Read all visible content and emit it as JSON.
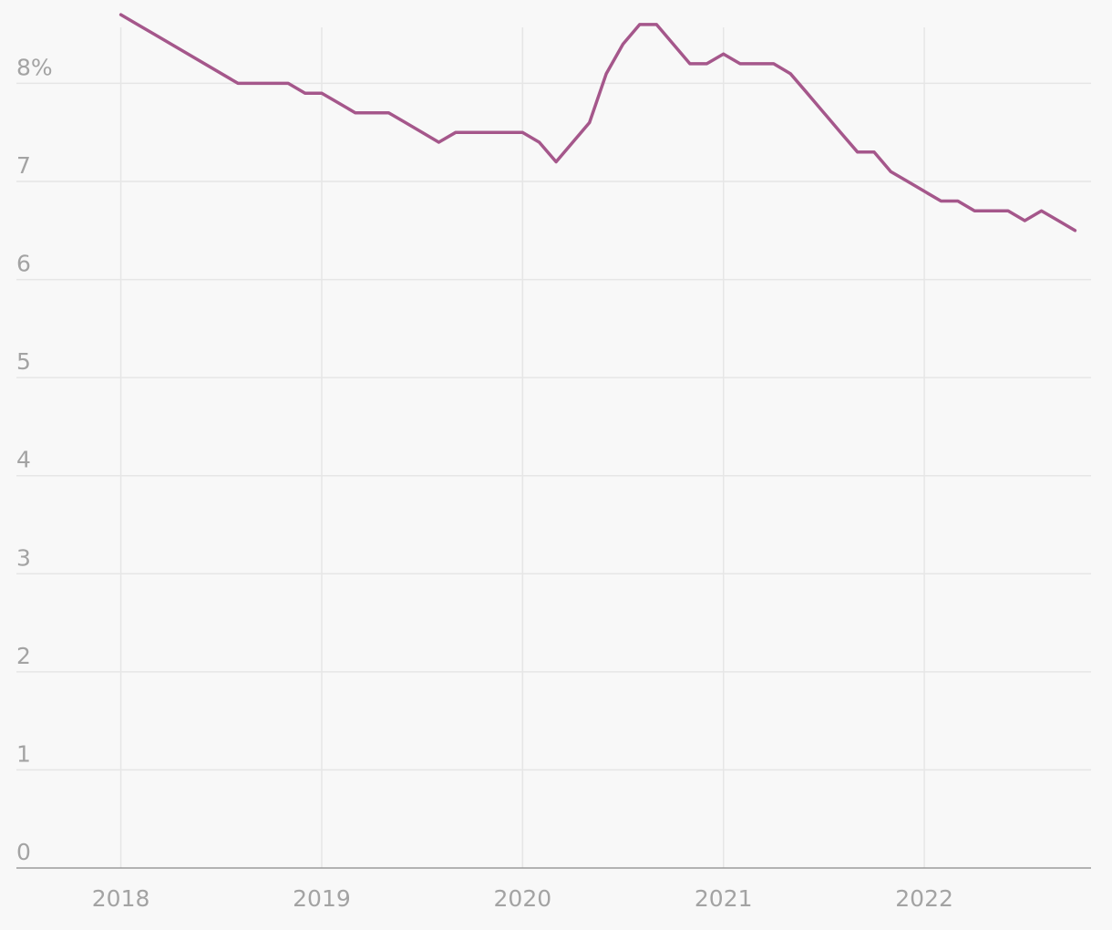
{
  "chart_data": {
    "type": "line",
    "title": "",
    "xlabel": "",
    "ylabel": "",
    "x_ticks": [
      "2018",
      "2019",
      "2020",
      "2021",
      "2022"
    ],
    "x_tick_values": [
      2018,
      2019,
      2020,
      2021,
      2022
    ],
    "y_ticks": [
      "0",
      "1",
      "2",
      "3",
      "4",
      "5",
      "6",
      "7",
      "8%"
    ],
    "y_tick_values": [
      0,
      1,
      2,
      3,
      4,
      5,
      6,
      7,
      8
    ],
    "xlim": [
      2017.48,
      2022.83
    ],
    "ylim": [
      0,
      8.85
    ],
    "grid": true,
    "legend": "none",
    "series": [
      {
        "color": "#a5578b",
        "x": [
          2018.0,
          2018.083,
          2018.167,
          2018.583,
          2018.833,
          2018.917,
          2019.0,
          2019.083,
          2019.167,
          2019.333,
          2019.417,
          2019.5,
          2019.583,
          2019.667,
          2019.75,
          2019.833,
          2019.917,
          2020.0,
          2020.083,
          2020.167,
          2020.25,
          2020.333,
          2020.417,
          2020.5,
          2020.583,
          2020.667,
          2020.75,
          2020.833,
          2020.917,
          2021.0,
          2021.083,
          2021.167,
          2021.25,
          2021.333,
          2021.417,
          2021.5,
          2021.583,
          2021.667,
          2021.75,
          2021.833,
          2021.917,
          2022.0,
          2022.083,
          2022.167,
          2022.25,
          2022.333,
          2022.417,
          2022.5,
          2022.583,
          2022.667,
          2022.75
        ],
        "y": [
          8.7,
          8.6,
          8.5,
          8.0,
          8.0,
          7.9,
          7.9,
          7.8,
          7.7,
          7.7,
          7.6,
          7.5,
          7.4,
          7.5,
          7.5,
          7.5,
          7.5,
          7.5,
          7.4,
          7.2,
          7.4,
          7.6,
          8.1,
          8.4,
          8.6,
          8.6,
          8.4,
          8.2,
          8.2,
          8.3,
          8.2,
          8.2,
          8.2,
          8.1,
          7.9,
          7.7,
          7.5,
          7.3,
          7.3,
          7.1,
          7.0,
          6.9,
          6.8,
          6.8,
          6.7,
          6.7,
          6.7,
          6.6,
          6.7,
          6.6,
          6.5
        ]
      }
    ]
  }
}
